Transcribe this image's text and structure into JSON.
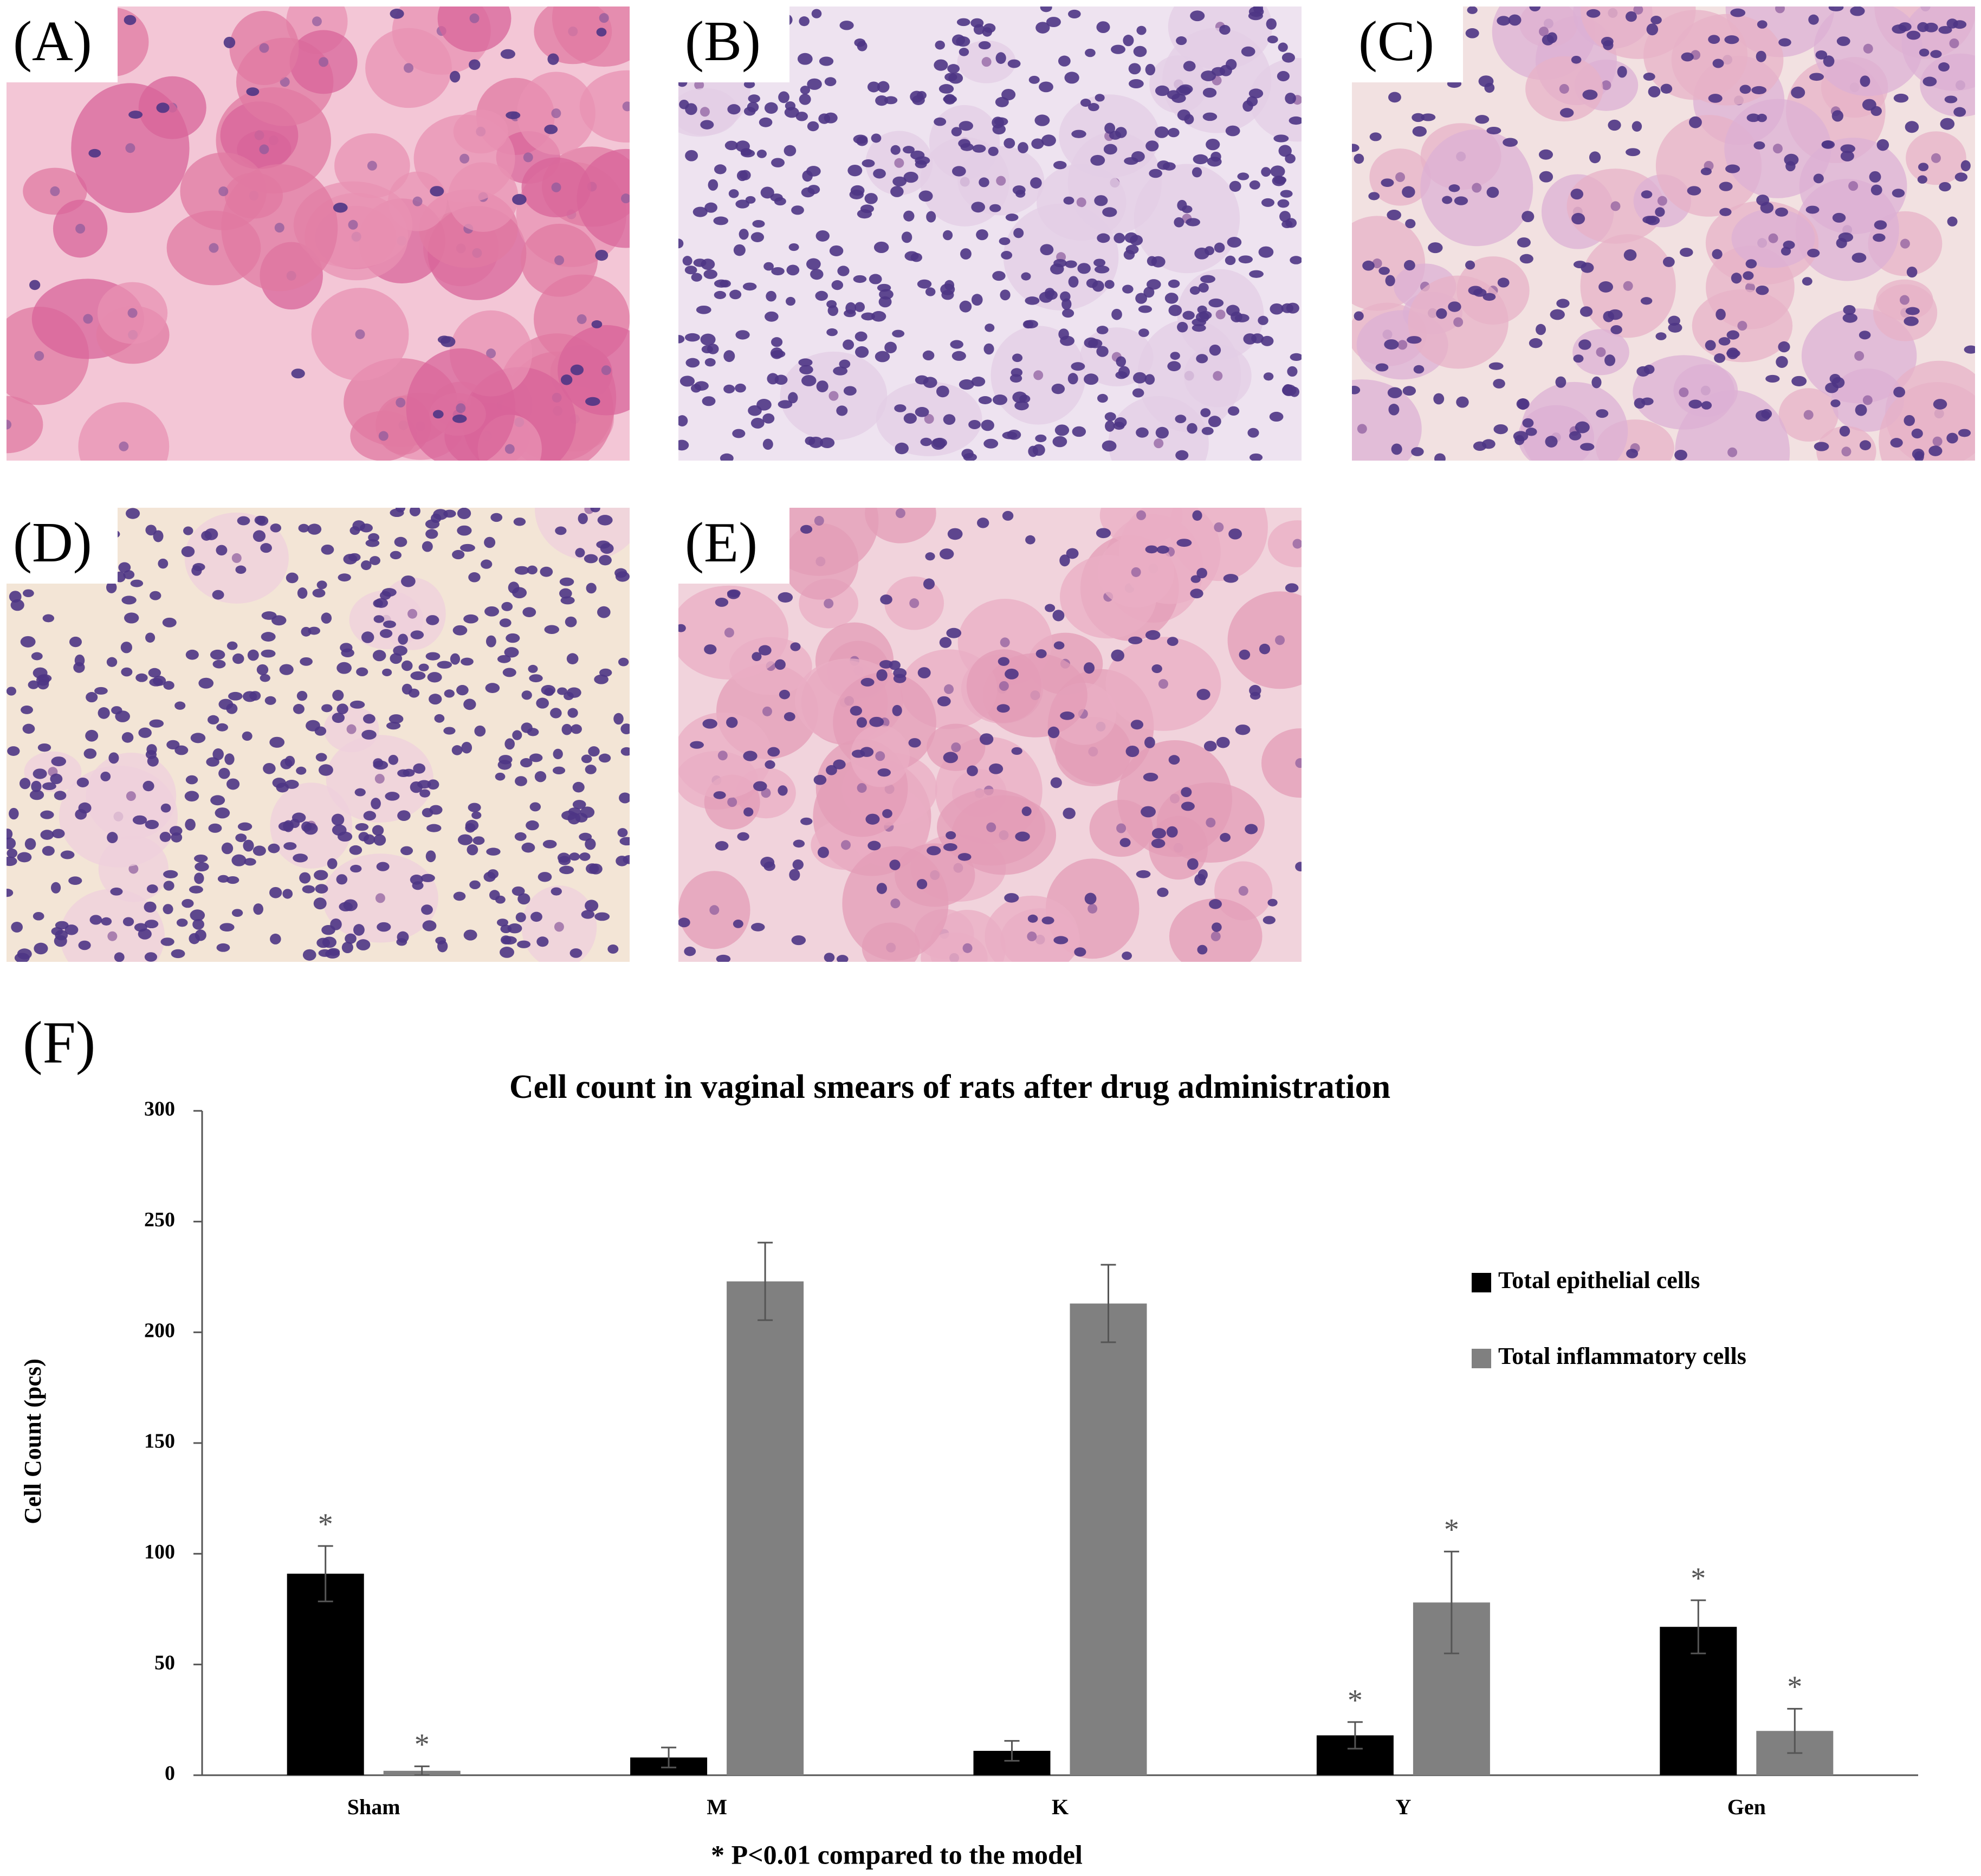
{
  "panels": [
    "(A)",
    "(B)",
    "(C)",
    "(D)",
    "(E)",
    "(F)"
  ],
  "chart_data": {
    "type": "bar",
    "title": "Cell count in vaginal smears of rats after drug administration",
    "y_label": "Cell Count (pcs)",
    "footnote": "* P<0.01 compared to the model",
    "categories": [
      "Sham",
      "M",
      "K",
      "Y",
      "Gen"
    ],
    "series": [
      {
        "name": "Total epithelial cells",
        "color": "#000000",
        "values": [
          91,
          8,
          11,
          18,
          67
        ],
        "errors": [
          12.5,
          4.5,
          4.5,
          6,
          12
        ],
        "markers": [
          "*",
          null,
          null,
          "*",
          "*"
        ]
      },
      {
        "name": "Total inflammatory cells",
        "color": "#808080",
        "values": [
          2,
          223,
          213,
          78,
          20
        ],
        "errors": [
          2,
          17.5,
          17.5,
          23,
          10
        ],
        "markers": [
          "*",
          null,
          null,
          "*",
          "*"
        ]
      }
    ],
    "ylim": [
      0,
      300
    ],
    "yticks": [
      0,
      50,
      100,
      150,
      200,
      250,
      300
    ],
    "grid": false,
    "legend": "right"
  }
}
